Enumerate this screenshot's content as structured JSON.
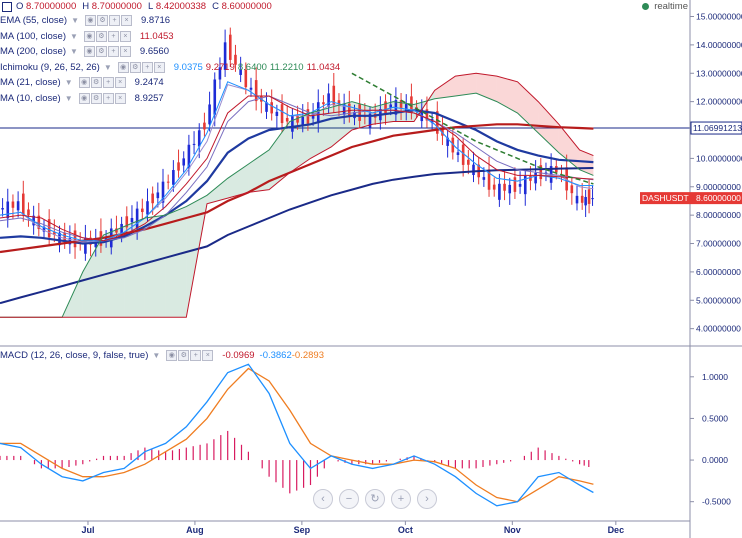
{
  "header": {
    "ohlc": [
      {
        "k": "O",
        "v": "8.70000000"
      },
      {
        "k": "H",
        "v": "8.70000000"
      },
      {
        "k": "L",
        "v": "8.42000338"
      },
      {
        "k": "C",
        "v": "8.60000000"
      }
    ],
    "realtime": "realtime"
  },
  "indicators": [
    {
      "name": "EMA (55, close)",
      "values": [
        "9.8716"
      ],
      "color": "#1c2a7a"
    },
    {
      "name": "MA (100, close)",
      "values": [
        "11.0453"
      ],
      "color": "#c0182b"
    },
    {
      "name": "MA (200, close)",
      "values": [
        "9.6560"
      ],
      "color": "#1c2a7a"
    },
    {
      "name": "Ichimoku (9, 26, 52, 26)",
      "values": [
        "9.0375",
        "9.2719",
        "8.6400",
        "11.2210",
        "11.0434"
      ],
      "colors": [
        "#1e90ff",
        "#c0182b",
        "#2e8b57",
        "#2e8b57",
        "#c0182b"
      ]
    },
    {
      "name": "MA (21, close)",
      "values": [
        "9.2474"
      ],
      "color": "#1c2a7a"
    },
    {
      "name": "MA (10, close)",
      "values": [
        "8.9257"
      ],
      "color": "#1c2a7a"
    }
  ],
  "macd": {
    "label": "MACD (12, 26, close, 9, false, true)",
    "values": [
      "-0.0969",
      "-0.3862",
      "-0.2893"
    ],
    "colors": [
      "#c0182b",
      "#1e90ff",
      "#ef7d21"
    ]
  },
  "price_axis_labels": [
    "15.00000000",
    "14.00000000",
    "13.00000000",
    "12.00000000",
    "11.00000000",
    "10.00000000",
    "9.00000000",
    "8.00000000",
    "7.00000000",
    "6.00000000",
    "5.00000000",
    "4.00000000"
  ],
  "macd_axis_labels": [
    "1.0000",
    "0.5000",
    "0.0000",
    "-0.5000"
  ],
  "price_line": {
    "label": "11.06991213",
    "value": 11.07
  },
  "last_price": {
    "label": "DASHUSDT",
    "value": "8.60000000",
    "color": "#e53935"
  },
  "x_labels": [
    "Jul",
    "Aug",
    "Sep",
    "Oct",
    "Nov",
    "Dec"
  ],
  "chart_data": [
    {
      "type": "line",
      "title": "",
      "x_label_positions": [
        {
          "label": "Jul",
          "x": 25
        },
        {
          "label": "Aug",
          "x": 56
        },
        {
          "label": "Sep",
          "x": 87
        },
        {
          "label": "Oct",
          "x": 117
        },
        {
          "label": "Nov",
          "x": 148
        },
        {
          "label": "Dec",
          "x": 178
        }
      ],
      "x": [
        0,
        6,
        12,
        18,
        24,
        30,
        36,
        42,
        48,
        54,
        60,
        66,
        72,
        78,
        84,
        90,
        96,
        102,
        108,
        114,
        120,
        126,
        132,
        138,
        144,
        150,
        156,
        162,
        168,
        172
      ],
      "ylim": [
        3.6,
        15.3
      ],
      "series": [
        {
          "name": "Close",
          "color": "#1c2a7a",
          "values": [
            8.2,
            8.4,
            7.6,
            7.2,
            7.0,
            7.1,
            7.6,
            8.2,
            9.0,
            10.0,
            11.2,
            14.0,
            12.6,
            11.8,
            11.3,
            11.4,
            12.2,
            11.6,
            11.4,
            11.9,
            11.8,
            11.3,
            10.3,
            9.6,
            8.9,
            9.0,
            9.4,
            9.6,
            8.5,
            8.6
          ]
        },
        {
          "name": "EMA (55, close)",
          "color": "#1f3aa0",
          "values": [
            7.2,
            7.25,
            7.2,
            7.1,
            7.0,
            7.05,
            7.25,
            7.6,
            8.0,
            8.5,
            9.2,
            10.2,
            10.7,
            11.0,
            11.1,
            11.2,
            11.4,
            11.5,
            11.5,
            11.6,
            11.7,
            11.6,
            11.3,
            11.0,
            10.6,
            10.3,
            10.1,
            9.95,
            9.9,
            9.87
          ]
        },
        {
          "name": "MA (100, close)",
          "color": "#b71c1c",
          "values": [
            6.7,
            6.8,
            6.9,
            7.0,
            7.1,
            7.2,
            7.35,
            7.5,
            7.7,
            7.9,
            8.1,
            8.5,
            8.8,
            9.2,
            9.5,
            9.8,
            10.1,
            10.4,
            10.6,
            10.8,
            10.9,
            11.0,
            11.1,
            11.15,
            11.2,
            11.2,
            11.15,
            11.1,
            11.07,
            11.05
          ]
        },
        {
          "name": "MA (200, close)",
          "color": "#1a2a88",
          "values": [
            4.9,
            5.1,
            5.3,
            5.5,
            5.7,
            5.9,
            6.1,
            6.3,
            6.5,
            6.7,
            6.9,
            7.3,
            7.6,
            7.9,
            8.2,
            8.45,
            8.7,
            8.9,
            9.1,
            9.25,
            9.35,
            9.45,
            9.5,
            9.55,
            9.58,
            9.6,
            9.62,
            9.64,
            9.65,
            9.66
          ]
        },
        {
          "name": "MA (21, close)",
          "color": "#7a6fc0",
          "values": [
            7.8,
            7.9,
            7.7,
            7.4,
            7.2,
            7.1,
            7.2,
            7.5,
            8.0,
            8.8,
            9.7,
            11.3,
            12.0,
            12.2,
            11.9,
            11.6,
            11.5,
            11.6,
            11.7,
            11.7,
            11.6,
            11.3,
            10.9,
            10.4,
            9.9,
            9.6,
            9.5,
            9.4,
            9.3,
            9.25
          ]
        },
        {
          "name": "MA (10, close)",
          "color": "#9a8ccf",
          "values": [
            8.0,
            8.1,
            7.5,
            7.2,
            7.05,
            7.1,
            7.4,
            7.9,
            8.6,
            9.5,
            10.6,
            12.6,
            12.4,
            11.9,
            11.5,
            11.5,
            11.9,
            11.8,
            11.6,
            11.8,
            11.7,
            11.2,
            10.4,
            9.8,
            9.3,
            9.2,
            9.4,
            9.4,
            9.0,
            8.93
          ]
        },
        {
          "name": "Tenkan",
          "color": "#1e90ff",
          "values": [
            8.0,
            8.1,
            7.6,
            7.3,
            7.1,
            7.1,
            7.4,
            7.9,
            8.7,
            9.6,
            10.9,
            12.7,
            12.4,
            11.9,
            11.5,
            11.6,
            12.0,
            11.8,
            11.6,
            11.8,
            11.7,
            11.2,
            10.4,
            9.8,
            9.3,
            9.2,
            9.4,
            9.3,
            9.05,
            9.04
          ]
        },
        {
          "name": "Kijun",
          "color": "#c0182b",
          "values": [
            7.9,
            8.0,
            7.9,
            7.5,
            7.2,
            7.1,
            7.3,
            7.7,
            8.3,
            9.1,
            10.0,
            11.6,
            12.2,
            12.2,
            11.8,
            11.5,
            11.6,
            11.7,
            11.7,
            11.7,
            11.6,
            11.3,
            10.8,
            10.1,
            9.6,
            9.4,
            9.4,
            9.35,
            9.3,
            9.27
          ]
        },
        {
          "name": "Senkou A",
          "color": "#2e8b57",
          "values": [
            4.4,
            4.4,
            4.4,
            4.4,
            6.0,
            7.3,
            7.6,
            7.9,
            8.0,
            8.3,
            8.7,
            9.3,
            9.8,
            10.3,
            11.3,
            11.6,
            11.8,
            12.0,
            11.8,
            12.0,
            11.9,
            12.1,
            12.2,
            12.3,
            12.0,
            11.6,
            10.9,
            10.2,
            9.6,
            9.4
          ]
        },
        {
          "name": "Senkou B",
          "color": "#c0182b",
          "values": [
            4.4,
            4.4,
            4.4,
            4.4,
            4.4,
            4.4,
            4.4,
            4.4,
            4.4,
            4.4,
            8.4,
            8.6,
            8.8,
            8.9,
            9.5,
            10.0,
            10.4,
            11.0,
            11.2,
            11.3,
            11.3,
            12.4,
            12.9,
            13.0,
            12.9,
            12.7,
            12.0,
            11.2,
            10.3,
            10.1
          ]
        },
        {
          "name": "Trendline",
          "color": "#2e7d32",
          "values": [
            null,
            null,
            null,
            null,
            null,
            null,
            null,
            null,
            null,
            null,
            null,
            null,
            null,
            null,
            null,
            null,
            null,
            13.0,
            12.6,
            12.2,
            11.8,
            11.4,
            11.0,
            10.6,
            10.3,
            10.0,
            9.7,
            9.45,
            9.25,
            9.1
          ]
        }
      ]
    },
    {
      "type": "line",
      "title": "MACD (12, 26, close, 9, false, true)",
      "x": [
        0,
        6,
        12,
        18,
        24,
        30,
        36,
        42,
        48,
        54,
        60,
        66,
        72,
        78,
        84,
        90,
        96,
        102,
        108,
        114,
        120,
        126,
        132,
        138,
        144,
        150,
        156,
        162,
        168,
        172
      ],
      "ylim": [
        -0.72,
        1.25
      ],
      "series": [
        {
          "name": "MACD",
          "color": "#1e90ff",
          "values": [
            0.2,
            0.15,
            -0.05,
            -0.2,
            -0.25,
            -0.15,
            -0.1,
            0.1,
            0.2,
            0.4,
            0.7,
            1.05,
            1.15,
            0.8,
            0.2,
            -0.1,
            0.05,
            -0.05,
            -0.1,
            -0.05,
            0.05,
            -0.05,
            -0.2,
            -0.4,
            -0.55,
            -0.5,
            -0.2,
            -0.15,
            -0.3,
            -0.39
          ]
        },
        {
          "name": "Signal",
          "color": "#ef7d21",
          "values": [
            0.2,
            0.2,
            0.05,
            -0.1,
            -0.2,
            -0.2,
            -0.15,
            -0.05,
            0.1,
            0.25,
            0.5,
            0.85,
            1.1,
            0.95,
            0.6,
            0.2,
            0.05,
            0.0,
            -0.05,
            -0.05,
            0.0,
            -0.02,
            -0.1,
            -0.3,
            -0.45,
            -0.5,
            -0.35,
            -0.2,
            -0.25,
            -0.29
          ]
        },
        {
          "name": "Histogram",
          "color": "#d81b60",
          "values": [
            0.05,
            0.05,
            -0.1,
            -0.1,
            -0.05,
            0.05,
            0.05,
            0.15,
            0.1,
            0.15,
            0.2,
            0.35,
            0.1,
            -0.2,
            -0.4,
            -0.3,
            0.0,
            -0.05,
            -0.05,
            0.0,
            0.05,
            -0.03,
            -0.1,
            -0.1,
            -0.05,
            0.0,
            0.15,
            0.05,
            -0.05,
            -0.1
          ]
        }
      ]
    }
  ],
  "nav_buttons": [
    "prev",
    "zoom-out",
    "reset",
    "zoom-in",
    "next"
  ]
}
